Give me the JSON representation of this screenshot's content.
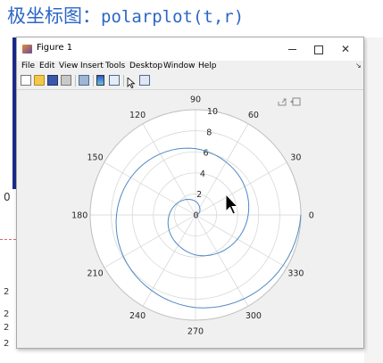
{
  "slide": {
    "title_prefix": "极坐标图：",
    "title_code": "polarplot(t,r)"
  },
  "background": {
    "left_glyph": "0",
    "left_numbers": [
      "2",
      "2",
      "2",
      "2"
    ]
  },
  "window": {
    "title": "Figure 1",
    "minimize_glyph": "",
    "maximize_glyph": "",
    "close_glyph": "✕",
    "dock_glyph": "↘",
    "menu": [
      "File",
      "Edit",
      "View",
      "Insert",
      "Tools",
      "Desktop",
      "Window",
      "Help"
    ]
  },
  "toolbar": {
    "icons": [
      "new-figure-icon",
      "open-file-icon",
      "save-icon",
      "print-icon",
      "print-preview-icon",
      "colorbar-icon",
      "legend-icon",
      "pointer-icon",
      "property-inspector-icon"
    ]
  },
  "axes_toolbar": {
    "icons": [
      "export-icon",
      "data-tips-icon"
    ]
  },
  "colors": {
    "curve": "#4f88c4",
    "grid": "#d3d3d3",
    "axes_background": "#ffffff",
    "figure_background": "#f0f0f0"
  },
  "chart_data": {
    "type": "line",
    "coordinate_system": "polar",
    "title": "",
    "rlim": [
      0,
      10
    ],
    "r_ticks": [
      "0",
      "2",
      "4",
      "6",
      "8",
      "10"
    ],
    "theta_ticks": [
      "0",
      "30",
      "60",
      "90",
      "120",
      "150",
      "180",
      "210",
      "240",
      "270",
      "300",
      "330"
    ],
    "theta_direction": "counterclockwise",
    "theta_zero": "right",
    "grid": true,
    "series": [
      {
        "theta_deg": [
          0,
          30,
          60,
          90,
          120,
          150,
          180,
          210,
          240,
          270,
          300,
          330,
          360,
          390,
          420,
          450,
          480,
          510,
          540,
          570,
          600,
          630,
          660,
          690,
          720
        ],
        "r": [
          0.0,
          0.4,
          0.8,
          1.3,
          1.7,
          2.1,
          2.5,
          2.9,
          3.3,
          3.8,
          4.2,
          4.6,
          5.0,
          5.4,
          5.8,
          6.3,
          6.7,
          7.1,
          7.5,
          7.9,
          8.3,
          8.8,
          9.2,
          9.6,
          10.0
        ]
      }
    ]
  }
}
